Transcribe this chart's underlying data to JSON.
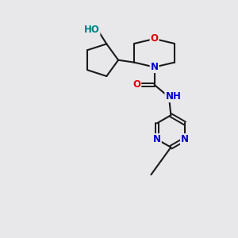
{
  "background_color": "#e8e8eb",
  "bond_color": "#1a1a1a",
  "atom_colors": {
    "O": "#dd0000",
    "N": "#0000cc",
    "HO": "#008080",
    "HN": "#008080",
    "C": "#1a1a1a"
  },
  "font_size": 8.5,
  "fig_width": 3.0,
  "fig_height": 3.0,
  "dpi": 100
}
